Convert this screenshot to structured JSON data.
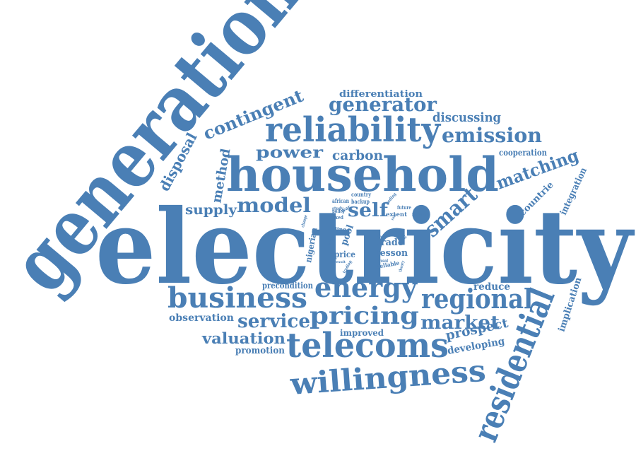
{
  "color": "#4a7fb5",
  "words": {
    "electricity": "electricity",
    "generation": "generation",
    "household": "household",
    "reliability": "reliability",
    "residential": "residential",
    "telecoms": "telecoms",
    "willingness": "willingness",
    "business": "business",
    "energy": "energy",
    "regional": "regional",
    "pricing": "pricing",
    "generator": "generator",
    "emission": "emission",
    "contingent": "contingent",
    "service": "service",
    "market": "market",
    "smart": "smart",
    "model": "model",
    "matching": "matching",
    "valuation": "valuation",
    "power": "power",
    "carbon": "carbon",
    "disposal": "disposal",
    "method": "method",
    "supply": "supply",
    "self": "self",
    "prospect": "prospect",
    "discussing": "discussing",
    "differentiation": "differentiation",
    "cooperation": "cooperation",
    "countrie": "countrie",
    "integration": "integration",
    "implication": "implication",
    "reduce": "reduce",
    "developing": "developing",
    "observation": "observation",
    "precondition": "precondition",
    "promotion": "promotion",
    "improved": "improved",
    "trade": "trade",
    "lesson": "lesson",
    "price": "price",
    "pool": "pool",
    "nigerian": "nigerian",
    "line": "line",
    "african": "african",
    "country": "country",
    "backup": "backup",
    "study": "study",
    "year": "year",
    "policy": "policy",
    "fixed": "fixed",
    "finding": "finding",
    "future": "future",
    "extent": "extent",
    "impact": "impact",
    "change": "change",
    "area": "area",
    "case": "case",
    "result": "result",
    "trading": "trading",
    "reveal": "reveal",
    "reliable": "reliable",
    "theory": "theory",
    "role": "role",
    "unit": "unit"
  }
}
